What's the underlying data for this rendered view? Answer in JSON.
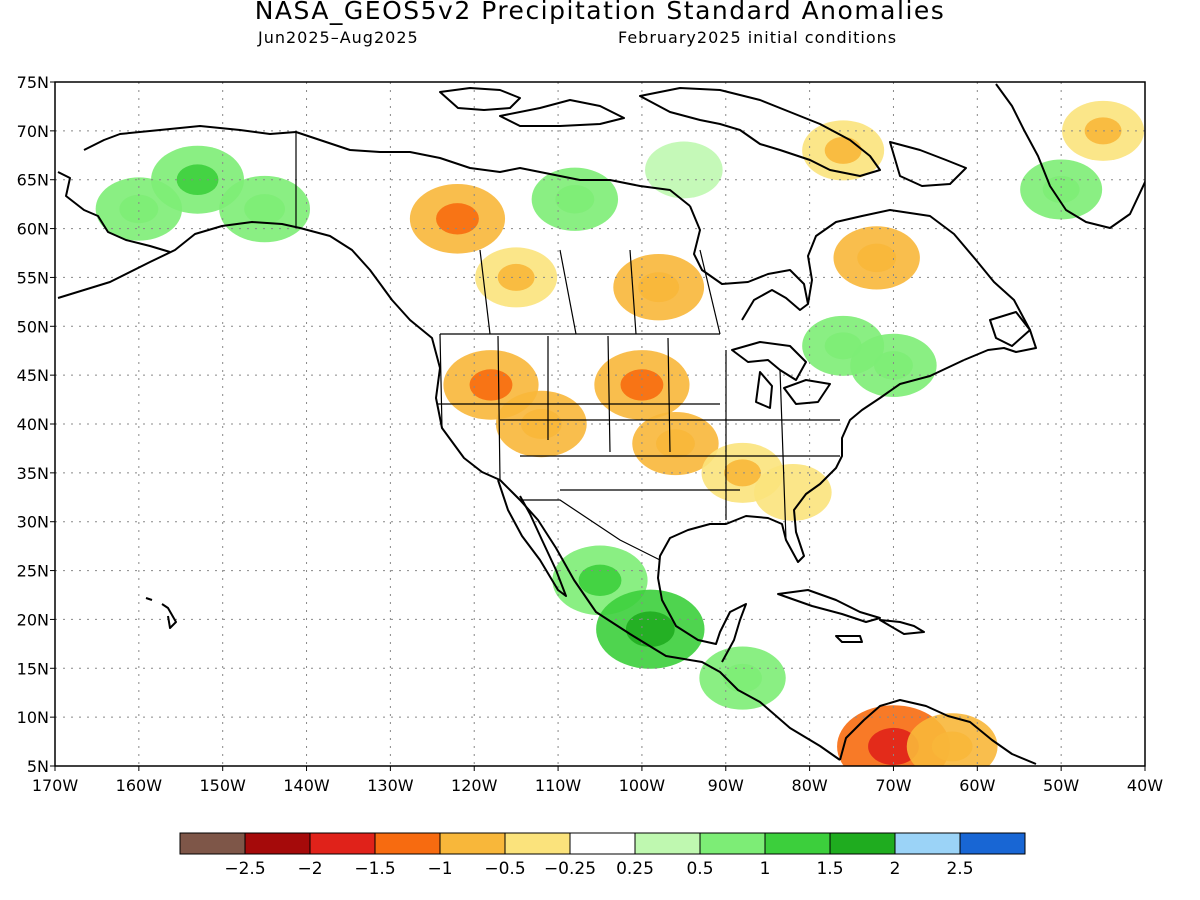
{
  "header": {
    "title": "NASA_GEOS5v2 Precipitation Standard Anomalies",
    "period": "Jun2025–Aug2025",
    "init": "February2025 initial conditions"
  },
  "map": {
    "lon_range": [
      -170,
      -40
    ],
    "lat_range": [
      5,
      75
    ],
    "lon_ticks": [
      -170,
      -160,
      -150,
      -140,
      -130,
      -120,
      -110,
      -100,
      -90,
      -80,
      -70,
      -60,
      -50,
      -40
    ],
    "lon_labels": [
      "170W",
      "160W",
      "150W",
      "140W",
      "130W",
      "120W",
      "110W",
      "100W",
      "90W",
      "80W",
      "70W",
      "60W",
      "50W",
      "40W"
    ],
    "lat_ticks": [
      5,
      10,
      15,
      20,
      25,
      30,
      35,
      40,
      45,
      50,
      55,
      60,
      65,
      70,
      75
    ],
    "lat_labels": [
      "5N",
      "10N",
      "15N",
      "20N",
      "25N",
      "30N",
      "35N",
      "40N",
      "45N",
      "50N",
      "55N",
      "60N",
      "65N",
      "70N",
      "75N"
    ],
    "grid": "dotted"
  },
  "colorbar": {
    "colors": [
      "#7e5648",
      "#a50a0a",
      "#e0221a",
      "#f76b10",
      "#f8b73a",
      "#fbe37c",
      "#ffffff",
      "#bff8b0",
      "#7ded76",
      "#3ccf3c",
      "#1fac1f",
      "#9bd3f7",
      "#1866d4"
    ],
    "labels": [
      "−2.5",
      "−2",
      "−1.5",
      "−1",
      "−0.5",
      "−0.25",
      "0.25",
      "0.5",
      "1",
      "1.5",
      "2",
      "2.5"
    ]
  },
  "anomaly_regions": [
    {
      "lon": -153,
      "lat": 65,
      "level": 0.75
    },
    {
      "lon": -160,
      "lat": 62,
      "level": 0.6
    },
    {
      "lon": -145,
      "lat": 62,
      "level": 0.7
    },
    {
      "lon": -122,
      "lat": 61,
      "level": -0.8
    },
    {
      "lon": -115,
      "lat": 55,
      "level": -0.5
    },
    {
      "lon": -98,
      "lat": 54,
      "level": -0.7
    },
    {
      "lon": -108,
      "lat": 63,
      "level": 0.6
    },
    {
      "lon": -95,
      "lat": 66,
      "level": 0.4
    },
    {
      "lon": -118,
      "lat": 44,
      "level": -0.8
    },
    {
      "lon": -112,
      "lat": 40,
      "level": -0.7
    },
    {
      "lon": -100,
      "lat": 44,
      "level": -0.8
    },
    {
      "lon": -96,
      "lat": 38,
      "level": -0.6
    },
    {
      "lon": -88,
      "lat": 35,
      "level": -0.5
    },
    {
      "lon": -82,
      "lat": 33,
      "level": -0.4
    },
    {
      "lon": -76,
      "lat": 48,
      "level": 0.5
    },
    {
      "lon": -70,
      "lat": 46,
      "level": 0.6
    },
    {
      "lon": -72,
      "lat": 57,
      "level": -0.6
    },
    {
      "lon": -76,
      "lat": 68,
      "level": -0.5
    },
    {
      "lon": -105,
      "lat": 24,
      "level": 0.8
    },
    {
      "lon": -99,
      "lat": 19,
      "level": 1.1
    },
    {
      "lon": -88,
      "lat": 14,
      "level": 0.6
    },
    {
      "lon": -70,
      "lat": 7,
      "level": -1.2
    },
    {
      "lon": -63,
      "lat": 7,
      "level": -0.7
    },
    {
      "lon": -45,
      "lat": 70,
      "level": -0.5
    },
    {
      "lon": -50,
      "lat": 64,
      "level": 0.5
    }
  ]
}
